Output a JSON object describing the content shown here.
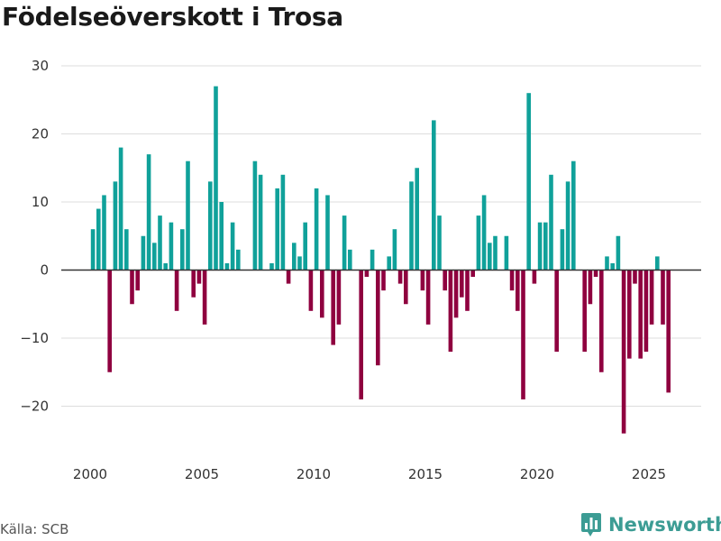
{
  "chart_data": {
    "type": "bar",
    "title": "Födelseöverskott i Trosa",
    "xlabel": "",
    "ylabel": "",
    "ylim": [
      -26,
      31
    ],
    "xlim": [
      1999.3,
      2026.9
    ],
    "yticks": [
      30,
      20,
      10,
      0,
      -10,
      -20
    ],
    "ytick_labels": [
      "30",
      "20",
      "10",
      "0",
      "−10",
      "−20"
    ],
    "xticks": [
      2000,
      2005,
      2010,
      2015,
      2020,
      2025
    ],
    "xtick_labels": [
      "2000",
      "2005",
      "2010",
      "2015",
      "2020",
      "2025"
    ],
    "grid": true,
    "positive_color": "#10a19a",
    "negative_color": "#8f003f",
    "start_year": 2000.125,
    "step_years": 0.25,
    "values": [
      6,
      9,
      11,
      -15,
      13,
      18,
      6,
      -5,
      -3,
      5,
      17,
      4,
      8,
      1,
      7,
      -6,
      6,
      16,
      -4,
      -2,
      -8,
      13,
      27,
      10,
      1,
      7,
      3,
      0,
      0,
      16,
      14,
      0,
      1,
      12,
      14,
      -2,
      4,
      2,
      7,
      -6,
      12,
      -7,
      11,
      -11,
      -8,
      8,
      3,
      0,
      -19,
      -1,
      3,
      -14,
      -3,
      2,
      6,
      -2,
      -5,
      13,
      15,
      -3,
      -8,
      22,
      8,
      -3,
      -12,
      -7,
      -4,
      -6,
      -1,
      8,
      11,
      4,
      5,
      0,
      5,
      -3,
      -6,
      -19,
      26,
      -2,
      7,
      7,
      14,
      -12,
      6,
      13,
      16,
      0,
      -12,
      -5,
      -1,
      -15,
      2,
      1,
      5,
      -24,
      -13,
      -2,
      -13,
      -12,
      -8,
      2,
      -8,
      -18
    ]
  },
  "source": {
    "label": "Källa: SCB"
  },
  "brand": {
    "name": "Newsworthy",
    "color": "#3c9c94",
    "icon": "bar-chart-logo-icon"
  }
}
